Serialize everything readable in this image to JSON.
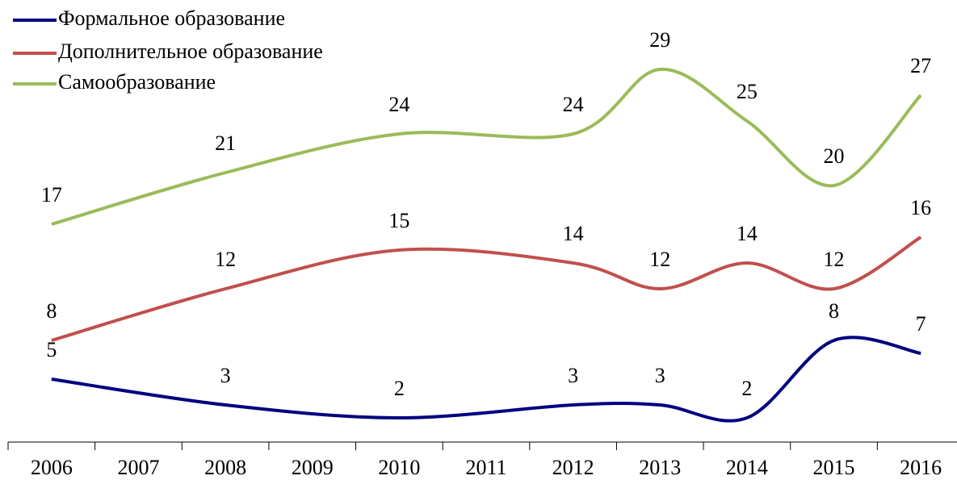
{
  "chart_data": {
    "type": "line",
    "x": [
      2006,
      2008,
      2010,
      2012,
      2013,
      2014,
      2015,
      2016
    ],
    "xlim": [
      2005.5,
      2016.5
    ],
    "xticks": [
      2006,
      2007,
      2008,
      2009,
      2010,
      2011,
      2012,
      2013,
      2014,
      2015,
      2016
    ],
    "ylim": [
      0,
      33
    ],
    "series": [
      {
        "name": "Формальное образование",
        "color": "#000080",
        "values": [
          5,
          3,
          2,
          3,
          3,
          2,
          8,
          7
        ]
      },
      {
        "name": "Дополнительное образование",
        "color": "#c0504d",
        "values": [
          8,
          12,
          15,
          14,
          12,
          14,
          12,
          16
        ]
      },
      {
        "name": "Самообразование",
        "color": "#9bbb59",
        "values": [
          17,
          21,
          24,
          24,
          29,
          25,
          20,
          27
        ]
      }
    ],
    "legend": "upper left"
  }
}
